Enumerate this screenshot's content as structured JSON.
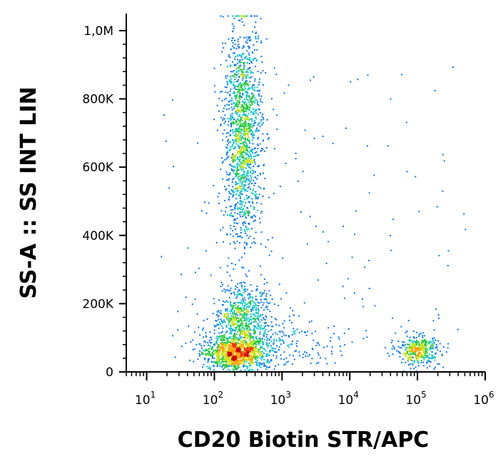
{
  "chart_data": {
    "type": "scatter",
    "subtype": "flow-cytometry-density-dot-plot",
    "xlabel": "CD20 Biotin STR/APC",
    "ylabel": "SS-A :: SS INT LIN",
    "x_scale": "log",
    "y_scale": "linear",
    "xlim": [
      5,
      1000000
    ],
    "ylim": [
      0,
      1050000
    ],
    "x_ticks": [
      {
        "base": "10",
        "exp": "1",
        "value": 10
      },
      {
        "base": "10",
        "exp": "2",
        "value": 100
      },
      {
        "base": "10",
        "exp": "3",
        "value": 1000
      },
      {
        "base": "10",
        "exp": "4",
        "value": 10000
      },
      {
        "base": "10",
        "exp": "5",
        "value": 100000
      },
      {
        "base": "10",
        "exp": "6",
        "value": 1000000
      }
    ],
    "y_ticks": [
      {
        "label": "0",
        "value": 0
      },
      {
        "label": "200K",
        "value": 200000
      },
      {
        "label": "400K",
        "value": 400000
      },
      {
        "label": "600K",
        "value": 600000
      },
      {
        "label": "800K",
        "value": 800000
      },
      {
        "label": "1,0M",
        "value": 1000000
      }
    ],
    "color_scale": [
      "#1a1aff",
      "#0077ff",
      "#00c8c8",
      "#22cc33",
      "#c8e000",
      "#ffa000",
      "#ff3000",
      "#d00000"
    ],
    "populations": [
      {
        "x_center": 200,
        "y_center": 55000,
        "log_x_sd": 0.22,
        "y_sd": 25000,
        "count": 900,
        "density": "high"
      },
      {
        "x_center": 250,
        "y_center": 150000,
        "log_x_sd": 0.22,
        "y_sd": 55000,
        "count": 700,
        "density": "medium"
      },
      {
        "x_center": 260,
        "y_center": 700000,
        "log_x_sd": 0.14,
        "y_sd": 160000,
        "count": 1500,
        "density": "low"
      },
      {
        "x_center": 100000,
        "y_center": 65000,
        "log_x_sd": 0.16,
        "y_sd": 22000,
        "count": 380,
        "density": "medium"
      },
      {
        "x_center": 600,
        "y_center": 80000,
        "log_x_sd": 0.55,
        "y_sd": 40000,
        "count": 300,
        "density": "sparse"
      }
    ],
    "grid": false,
    "legend": "none"
  }
}
